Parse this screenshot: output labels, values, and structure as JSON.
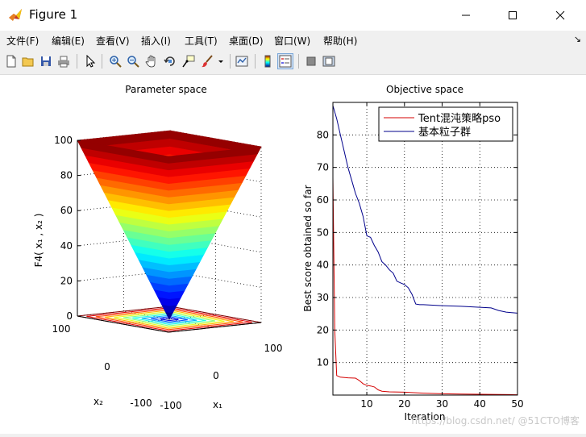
{
  "window": {
    "title": "Figure 1"
  },
  "menu": [
    "文件(F)",
    "编辑(E)",
    "查看(V)",
    "插入(I)",
    "工具(T)",
    "桌面(D)",
    "窗口(W)",
    "帮助(H)"
  ],
  "toolbar": {
    "icons": [
      "new-figure-icon",
      "open-file-icon",
      "save-icon",
      "print-icon",
      "pointer-icon",
      "zoom-in-icon",
      "zoom-out-icon",
      "pan-icon",
      "rotate-3d-icon",
      "data-cursor-icon",
      "brush-icon",
      "brush-dropdown-icon",
      "link-plot-icon",
      "colorbar-icon",
      "legend-icon",
      "hide-plot-tools-icon",
      "show-plot-tools-icon"
    ],
    "active": "legend-icon"
  },
  "watermark": "https://blog.csdn.net/ @51CTO博客",
  "chart_data": [
    {
      "type": "surface",
      "title": "Parameter space",
      "xlabel": "x₁",
      "ylabel": "x₂",
      "zlabel": "F4( x₁ , x₂ )",
      "x_ticks": [
        "-100",
        "0",
        "100"
      ],
      "y_ticks": [
        "-100",
        "0",
        "100"
      ],
      "z_ticks": [
        "0",
        "20",
        "40",
        "60",
        "80",
        "100"
      ],
      "zlim": [
        0,
        100
      ],
      "function": "max(|x1|,|x2|)",
      "colormap": "jet",
      "contour_levels": [
        10,
        20,
        30,
        40,
        50,
        60,
        70,
        80,
        90,
        100
      ]
    },
    {
      "type": "line",
      "title": "Objective space",
      "xlabel": "Iteration",
      "ylabel": "Best score obtained so far",
      "xlim": [
        1,
        50
      ],
      "ylim": [
        0,
        90
      ],
      "x_ticks": [
        "10",
        "20",
        "30",
        "40",
        "50"
      ],
      "y_ticks": [
        "10",
        "20",
        "30",
        "40",
        "50",
        "60",
        "70",
        "80"
      ],
      "grid": true,
      "legend": "top-right",
      "series": [
        {
          "name": "Tent混沌策略pso",
          "color": "#d40000",
          "points": [
            [
              1,
              67
            ],
            [
              1.5,
              20
            ],
            [
              2,
              6
            ],
            [
              3,
              5.5
            ],
            [
              5,
              5.3
            ],
            [
              7,
              5.2
            ],
            [
              8,
              4.5
            ],
            [
              9,
              3.5
            ],
            [
              10,
              3
            ],
            [
              11,
              2.8
            ],
            [
              12,
              2.5
            ],
            [
              13,
              1.6
            ],
            [
              14,
              1.2
            ],
            [
              16,
              1
            ],
            [
              20,
              0.9
            ],
            [
              25,
              0.6
            ],
            [
              30,
              0.4
            ],
            [
              35,
              0.3
            ],
            [
              40,
              0.25
            ],
            [
              45,
              0.2
            ],
            [
              48,
              0.15
            ],
            [
              50,
              0.1
            ]
          ]
        },
        {
          "name": "基本粒子群",
          "color": "#00008b",
          "points": [
            [
              1,
              89
            ],
            [
              2,
              85
            ],
            [
              3,
              80
            ],
            [
              4,
              75
            ],
            [
              5,
              70
            ],
            [
              6,
              66
            ],
            [
              7,
              62
            ],
            [
              8,
              59
            ],
            [
              9,
              55
            ],
            [
              10,
              49
            ],
            [
              11,
              48.5
            ],
            [
              12,
              46
            ],
            [
              13,
              44
            ],
            [
              14,
              41
            ],
            [
              15,
              40
            ],
            [
              16,
              38.5
            ],
            [
              17,
              37.5
            ],
            [
              18,
              35
            ],
            [
              19,
              34.5
            ],
            [
              20,
              34
            ],
            [
              21,
              33
            ],
            [
              22,
              31
            ],
            [
              23,
              28
            ],
            [
              24,
              27.8
            ],
            [
              25,
              27.8
            ],
            [
              30,
              27.5
            ],
            [
              35,
              27.3
            ],
            [
              40,
              27
            ],
            [
              43,
              26.8
            ],
            [
              45,
              26
            ],
            [
              47,
              25.5
            ],
            [
              50,
              25.2
            ]
          ]
        }
      ]
    }
  ]
}
